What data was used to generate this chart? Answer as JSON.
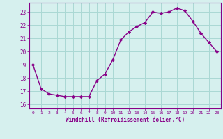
{
  "x": [
    0,
    1,
    2,
    3,
    4,
    5,
    6,
    7,
    8,
    9,
    10,
    11,
    12,
    13,
    14,
    15,
    16,
    17,
    18,
    19,
    20,
    21,
    22,
    23
  ],
  "y": [
    19.0,
    17.2,
    16.8,
    16.7,
    16.6,
    16.6,
    16.6,
    16.6,
    17.8,
    18.3,
    19.4,
    20.9,
    21.5,
    21.9,
    22.2,
    23.0,
    22.9,
    23.0,
    23.3,
    23.1,
    22.3,
    21.4,
    20.7,
    20.0
  ],
  "line_color": "#880088",
  "marker": "D",
  "marker_size": 2.2,
  "bg_color": "#d6f0ee",
  "grid_color": "#aad8d4",
  "xlabel": "Windchill (Refroidissement éolien,°C)",
  "xlim": [
    -0.5,
    23.5
  ],
  "ylim": [
    15.7,
    23.7
  ],
  "yticks": [
    16,
    17,
    18,
    19,
    20,
    21,
    22,
    23
  ],
  "xticks": [
    0,
    1,
    2,
    3,
    4,
    5,
    6,
    7,
    8,
    9,
    10,
    11,
    12,
    13,
    14,
    15,
    16,
    17,
    18,
    19,
    20,
    21,
    22,
    23
  ],
  "tick_color": "#880088",
  "label_color": "#880088",
  "spine_color": "#880088"
}
